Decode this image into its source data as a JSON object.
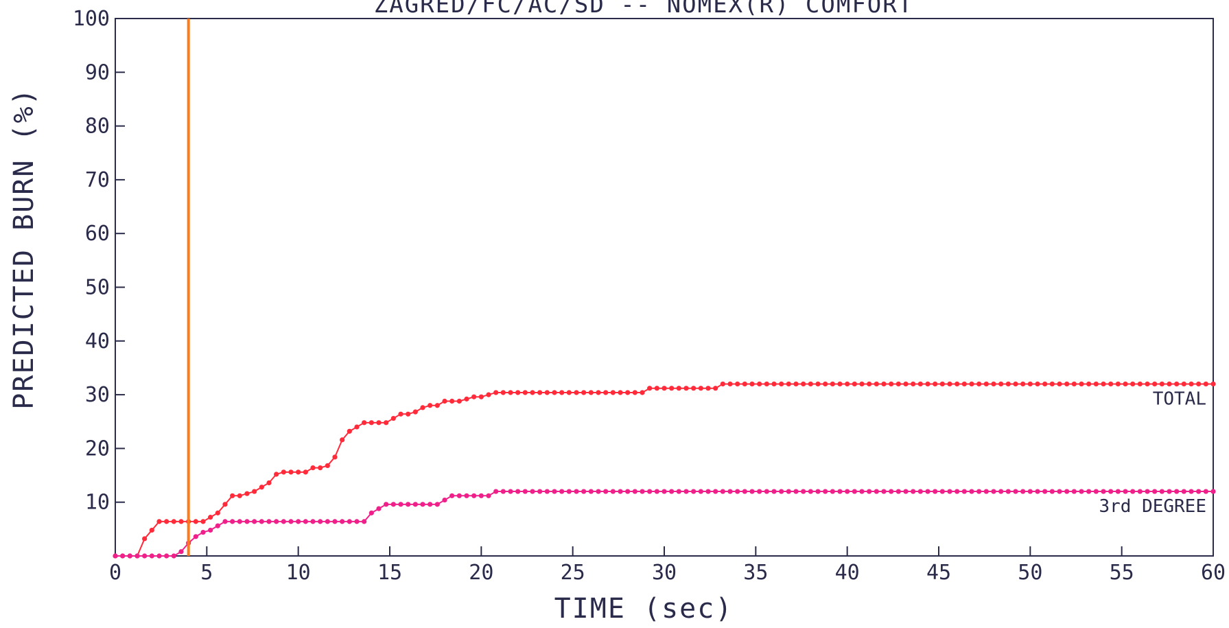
{
  "chart_data": {
    "type": "line",
    "title": "ZAGRED/FC/AC/SD -- NOMEX(R) COMFORT",
    "xlabel": "TIME (sec)",
    "ylabel": "PREDICTED BURN (%)",
    "xlim": [
      0,
      60
    ],
    "ylim": [
      0,
      100
    ],
    "xticks": [
      "0",
      "5",
      "10",
      "15",
      "20",
      "25",
      "30",
      "35",
      "40",
      "45",
      "50",
      "55",
      "60"
    ],
    "yticks": [
      "10",
      "20",
      "30",
      "40",
      "50",
      "60",
      "70",
      "80",
      "90",
      "100"
    ],
    "grid": false,
    "vertical_marker": {
      "x": 4.0,
      "color": "#ff7a1a"
    },
    "series": [
      {
        "name": "TOTAL",
        "color": "#ff2a3a",
        "points": [
          [
            0,
            0
          ],
          [
            0.4,
            0
          ],
          [
            0.8,
            0
          ],
          [
            1.2,
            0
          ],
          [
            1.6,
            3.2
          ],
          [
            2.0,
            4.8
          ],
          [
            2.4,
            6.4
          ],
          [
            2.8,
            6.4
          ],
          [
            3.2,
            6.4
          ],
          [
            3.6,
            6.4
          ],
          [
            4.0,
            6.4
          ],
          [
            4.4,
            6.4
          ],
          [
            4.8,
            6.4
          ],
          [
            5.2,
            7.2
          ],
          [
            5.6,
            8.0
          ],
          [
            6.0,
            9.6
          ],
          [
            6.4,
            11.2
          ],
          [
            6.8,
            11.2
          ],
          [
            7.2,
            11.6
          ],
          [
            7.6,
            12.0
          ],
          [
            8.0,
            12.8
          ],
          [
            8.4,
            13.6
          ],
          [
            8.8,
            15.2
          ],
          [
            9.2,
            15.6
          ],
          [
            9.6,
            15.6
          ],
          [
            10.0,
            15.6
          ],
          [
            10.4,
            15.6
          ],
          [
            10.8,
            16.4
          ],
          [
            11.2,
            16.4
          ],
          [
            11.6,
            16.8
          ],
          [
            12.0,
            18.4
          ],
          [
            12.4,
            21.6
          ],
          [
            12.8,
            23.2
          ],
          [
            13.2,
            24.0
          ],
          [
            13.6,
            24.8
          ],
          [
            14.0,
            24.8
          ],
          [
            14.4,
            24.8
          ],
          [
            14.8,
            24.8
          ],
          [
            15.2,
            25.6
          ],
          [
            15.6,
            26.4
          ],
          [
            16.0,
            26.4
          ],
          [
            16.4,
            26.8
          ],
          [
            16.8,
            27.6
          ],
          [
            17.2,
            28.0
          ],
          [
            17.6,
            28.0
          ],
          [
            18.0,
            28.8
          ],
          [
            18.4,
            28.8
          ],
          [
            18.8,
            28.8
          ],
          [
            19.2,
            29.2
          ],
          [
            19.6,
            29.6
          ],
          [
            20.0,
            29.6
          ],
          [
            20.4,
            30.0
          ],
          [
            20.8,
            30.4
          ],
          [
            21.2,
            30.4
          ],
          [
            21.6,
            30.4
          ],
          [
            22.0,
            30.4
          ],
          [
            22.4,
            30.4
          ],
          [
            22.8,
            30.4
          ],
          [
            23.2,
            30.4
          ],
          [
            23.6,
            30.4
          ],
          [
            24.0,
            30.4
          ],
          [
            24.4,
            30.4
          ],
          [
            24.8,
            30.4
          ],
          [
            25.2,
            30.4
          ],
          [
            25.6,
            30.4
          ],
          [
            26.0,
            30.4
          ],
          [
            26.4,
            30.4
          ],
          [
            26.8,
            30.4
          ],
          [
            27.2,
            30.4
          ],
          [
            27.6,
            30.4
          ],
          [
            28.0,
            30.4
          ],
          [
            28.4,
            30.4
          ],
          [
            28.8,
            30.4
          ],
          [
            29.2,
            31.2
          ],
          [
            29.6,
            31.2
          ],
          [
            30.0,
            31.2
          ],
          [
            30.4,
            31.2
          ],
          [
            30.8,
            31.2
          ],
          [
            31.2,
            31.2
          ],
          [
            31.6,
            31.2
          ],
          [
            32.0,
            31.2
          ],
          [
            32.4,
            31.2
          ],
          [
            32.8,
            31.2
          ],
          [
            33.2,
            32.0
          ],
          [
            33.6,
            32.0
          ],
          [
            34.0,
            32.0
          ],
          [
            34.4,
            32.0
          ],
          [
            34.8,
            32.0
          ],
          [
            35.2,
            32.0
          ],
          [
            35.6,
            32.0
          ],
          [
            36.0,
            32.0
          ],
          [
            36.4,
            32.0
          ],
          [
            36.8,
            32.0
          ],
          [
            37.2,
            32.0
          ],
          [
            37.6,
            32.0
          ],
          [
            38.0,
            32.0
          ],
          [
            38.4,
            32.0
          ],
          [
            38.8,
            32.0
          ],
          [
            39.2,
            32.0
          ],
          [
            39.6,
            32.0
          ],
          [
            40.0,
            32.0
          ],
          [
            40.4,
            32.0
          ],
          [
            40.8,
            32.0
          ],
          [
            41.2,
            32.0
          ],
          [
            41.6,
            32.0
          ],
          [
            42.0,
            32.0
          ],
          [
            42.4,
            32.0
          ],
          [
            42.8,
            32.0
          ],
          [
            43.2,
            32.0
          ],
          [
            43.6,
            32.0
          ],
          [
            44.0,
            32.0
          ],
          [
            44.4,
            32.0
          ],
          [
            44.8,
            32.0
          ],
          [
            45.2,
            32.0
          ],
          [
            45.6,
            32.0
          ],
          [
            46.0,
            32.0
          ],
          [
            46.4,
            32.0
          ],
          [
            46.8,
            32.0
          ],
          [
            47.2,
            32.0
          ],
          [
            47.6,
            32.0
          ],
          [
            48.0,
            32.0
          ],
          [
            48.4,
            32.0
          ],
          [
            48.8,
            32.0
          ],
          [
            49.2,
            32.0
          ],
          [
            49.6,
            32.0
          ],
          [
            50.0,
            32.0
          ],
          [
            50.4,
            32.0
          ],
          [
            50.8,
            32.0
          ],
          [
            51.2,
            32.0
          ],
          [
            51.6,
            32.0
          ],
          [
            52.0,
            32.0
          ],
          [
            52.4,
            32.0
          ],
          [
            52.8,
            32.0
          ],
          [
            53.2,
            32.0
          ],
          [
            53.6,
            32.0
          ],
          [
            54.0,
            32.0
          ],
          [
            54.4,
            32.0
          ],
          [
            54.8,
            32.0
          ],
          [
            55.2,
            32.0
          ],
          [
            55.6,
            32.0
          ],
          [
            56.0,
            32.0
          ],
          [
            56.4,
            32.0
          ],
          [
            56.8,
            32.0
          ],
          [
            57.2,
            32.0
          ],
          [
            57.6,
            32.0
          ],
          [
            58.0,
            32.0
          ],
          [
            58.4,
            32.0
          ],
          [
            58.8,
            32.0
          ],
          [
            59.2,
            32.0
          ],
          [
            59.6,
            32.0
          ],
          [
            60.0,
            32.0
          ]
        ]
      },
      {
        "name": "3rd DEGREE",
        "color": "#f0208a",
        "points": [
          [
            0,
            0
          ],
          [
            0.4,
            0
          ],
          [
            0.8,
            0
          ],
          [
            1.2,
            0
          ],
          [
            1.6,
            0
          ],
          [
            2.0,
            0
          ],
          [
            2.4,
            0
          ],
          [
            2.8,
            0
          ],
          [
            3.2,
            0
          ],
          [
            3.6,
            0.8
          ],
          [
            4.0,
            2.4
          ],
          [
            4.4,
            3.6
          ],
          [
            4.8,
            4.4
          ],
          [
            5.2,
            4.8
          ],
          [
            5.6,
            5.6
          ],
          [
            6.0,
            6.4
          ],
          [
            6.4,
            6.4
          ],
          [
            6.8,
            6.4
          ],
          [
            7.2,
            6.4
          ],
          [
            7.6,
            6.4
          ],
          [
            8.0,
            6.4
          ],
          [
            8.4,
            6.4
          ],
          [
            8.8,
            6.4
          ],
          [
            9.2,
            6.4
          ],
          [
            9.6,
            6.4
          ],
          [
            10.0,
            6.4
          ],
          [
            10.4,
            6.4
          ],
          [
            10.8,
            6.4
          ],
          [
            11.2,
            6.4
          ],
          [
            11.6,
            6.4
          ],
          [
            12.0,
            6.4
          ],
          [
            12.4,
            6.4
          ],
          [
            12.8,
            6.4
          ],
          [
            13.2,
            6.4
          ],
          [
            13.6,
            6.4
          ],
          [
            14.0,
            8.0
          ],
          [
            14.4,
            8.8
          ],
          [
            14.8,
            9.6
          ],
          [
            15.2,
            9.6
          ],
          [
            15.6,
            9.6
          ],
          [
            16.0,
            9.6
          ],
          [
            16.4,
            9.6
          ],
          [
            16.8,
            9.6
          ],
          [
            17.2,
            9.6
          ],
          [
            17.6,
            9.6
          ],
          [
            18.0,
            10.4
          ],
          [
            18.4,
            11.2
          ],
          [
            18.8,
            11.2
          ],
          [
            19.2,
            11.2
          ],
          [
            19.6,
            11.2
          ],
          [
            20.0,
            11.2
          ],
          [
            20.4,
            11.2
          ],
          [
            20.8,
            12.0
          ],
          [
            21.2,
            12.0
          ],
          [
            21.6,
            12.0
          ],
          [
            22.0,
            12.0
          ],
          [
            22.4,
            12.0
          ],
          [
            22.8,
            12.0
          ],
          [
            23.2,
            12.0
          ],
          [
            23.6,
            12.0
          ],
          [
            24.0,
            12.0
          ],
          [
            24.4,
            12.0
          ],
          [
            24.8,
            12.0
          ],
          [
            25.2,
            12.0
          ],
          [
            25.6,
            12.0
          ],
          [
            26.0,
            12.0
          ],
          [
            26.4,
            12.0
          ],
          [
            26.8,
            12.0
          ],
          [
            27.2,
            12.0
          ],
          [
            27.6,
            12.0
          ],
          [
            28.0,
            12.0
          ],
          [
            28.4,
            12.0
          ],
          [
            28.8,
            12.0
          ],
          [
            29.2,
            12.0
          ],
          [
            29.6,
            12.0
          ],
          [
            30.0,
            12.0
          ],
          [
            30.4,
            12.0
          ],
          [
            30.8,
            12.0
          ],
          [
            31.2,
            12.0
          ],
          [
            31.6,
            12.0
          ],
          [
            32.0,
            12.0
          ],
          [
            32.4,
            12.0
          ],
          [
            32.8,
            12.0
          ],
          [
            33.2,
            12.0
          ],
          [
            33.6,
            12.0
          ],
          [
            34.0,
            12.0
          ],
          [
            34.4,
            12.0
          ],
          [
            34.8,
            12.0
          ],
          [
            35.2,
            12.0
          ],
          [
            35.6,
            12.0
          ],
          [
            36.0,
            12.0
          ],
          [
            36.4,
            12.0
          ],
          [
            36.8,
            12.0
          ],
          [
            37.2,
            12.0
          ],
          [
            37.6,
            12.0
          ],
          [
            38.0,
            12.0
          ],
          [
            38.4,
            12.0
          ],
          [
            38.8,
            12.0
          ],
          [
            39.2,
            12.0
          ],
          [
            39.6,
            12.0
          ],
          [
            40.0,
            12.0
          ],
          [
            40.4,
            12.0
          ],
          [
            40.8,
            12.0
          ],
          [
            41.2,
            12.0
          ],
          [
            41.6,
            12.0
          ],
          [
            42.0,
            12.0
          ],
          [
            42.4,
            12.0
          ],
          [
            42.8,
            12.0
          ],
          [
            43.2,
            12.0
          ],
          [
            43.6,
            12.0
          ],
          [
            44.0,
            12.0
          ],
          [
            44.4,
            12.0
          ],
          [
            44.8,
            12.0
          ],
          [
            45.2,
            12.0
          ],
          [
            45.6,
            12.0
          ],
          [
            46.0,
            12.0
          ],
          [
            46.4,
            12.0
          ],
          [
            46.8,
            12.0
          ],
          [
            47.2,
            12.0
          ],
          [
            47.6,
            12.0
          ],
          [
            48.0,
            12.0
          ],
          [
            48.4,
            12.0
          ],
          [
            48.8,
            12.0
          ],
          [
            49.2,
            12.0
          ],
          [
            49.6,
            12.0
          ],
          [
            50.0,
            12.0
          ],
          [
            50.4,
            12.0
          ],
          [
            50.8,
            12.0
          ],
          [
            51.2,
            12.0
          ],
          [
            51.6,
            12.0
          ],
          [
            52.0,
            12.0
          ],
          [
            52.4,
            12.0
          ],
          [
            52.8,
            12.0
          ],
          [
            53.2,
            12.0
          ],
          [
            53.6,
            12.0
          ],
          [
            54.0,
            12.0
          ],
          [
            54.4,
            12.0
          ],
          [
            54.8,
            12.0
          ],
          [
            55.2,
            12.0
          ],
          [
            55.6,
            12.0
          ],
          [
            56.0,
            12.0
          ],
          [
            56.4,
            12.0
          ],
          [
            56.8,
            12.0
          ],
          [
            57.2,
            12.0
          ],
          [
            57.6,
            12.0
          ],
          [
            58.0,
            12.0
          ],
          [
            58.4,
            12.0
          ],
          [
            58.8,
            12.0
          ],
          [
            59.2,
            12.0
          ],
          [
            59.6,
            12.0
          ],
          [
            60.0,
            12.0
          ]
        ]
      }
    ]
  }
}
